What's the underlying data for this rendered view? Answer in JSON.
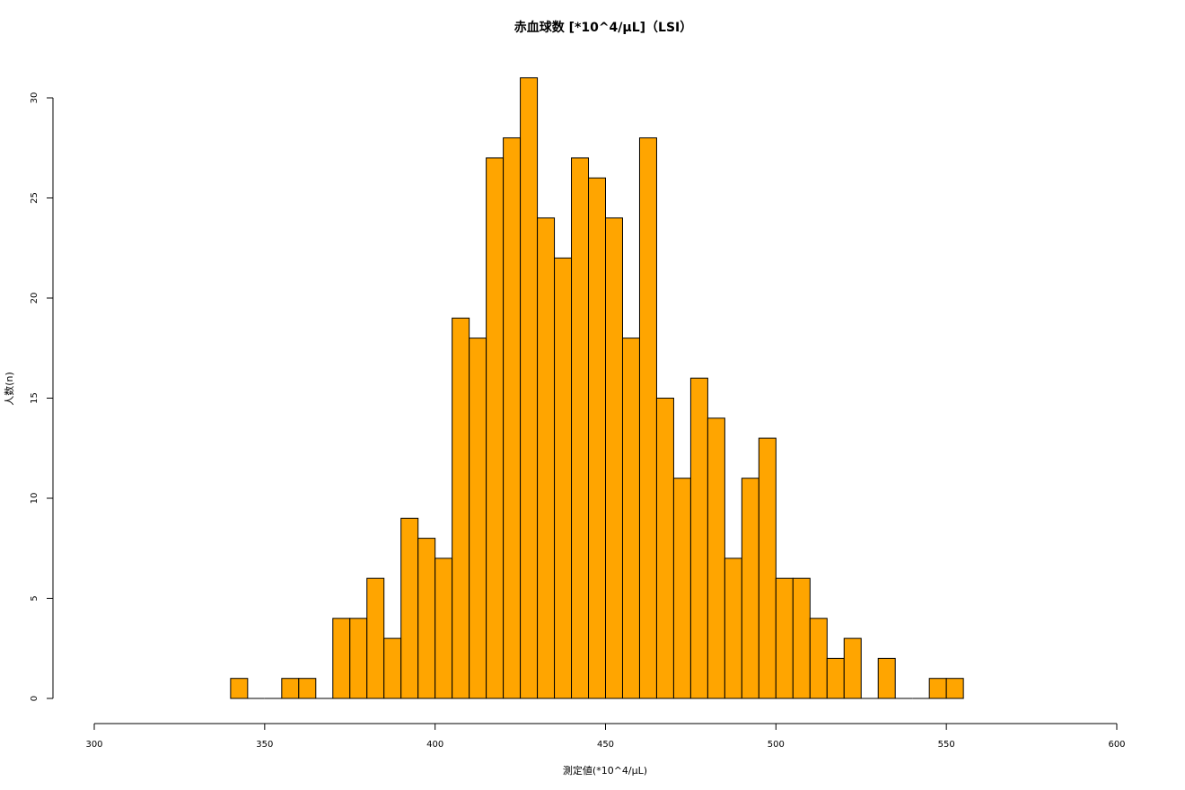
{
  "chart_data": {
    "type": "bar",
    "title": "赤血球数 [*10^4/μL]（LSI）",
    "xlabel": "測定値(*10^4/μL)",
    "ylabel": "人数(n)",
    "xlim": [
      300,
      600
    ],
    "ylim": [
      0,
      30
    ],
    "bin_width": 5,
    "bin_start": 340,
    "values": [
      1,
      0,
      0,
      1,
      1,
      0,
      4,
      4,
      6,
      3,
      9,
      8,
      7,
      19,
      18,
      27,
      28,
      31,
      24,
      22,
      27,
      26,
      24,
      18,
      28,
      15,
      11,
      16,
      14,
      7,
      11,
      13,
      6,
      6,
      4,
      2,
      3,
      0,
      2,
      0,
      0,
      1,
      1
    ],
    "x_ticks": [
      "300",
      "350",
      "400",
      "450",
      "500",
      "550",
      "600"
    ],
    "y_ticks": [
      "0",
      "5",
      "10",
      "15",
      "20",
      "25",
      "30"
    ],
    "colors": {
      "bar_fill": "#FFA500",
      "bar_stroke": "#000000",
      "axis": "#000000"
    },
    "grid": false,
    "legend": "none"
  }
}
